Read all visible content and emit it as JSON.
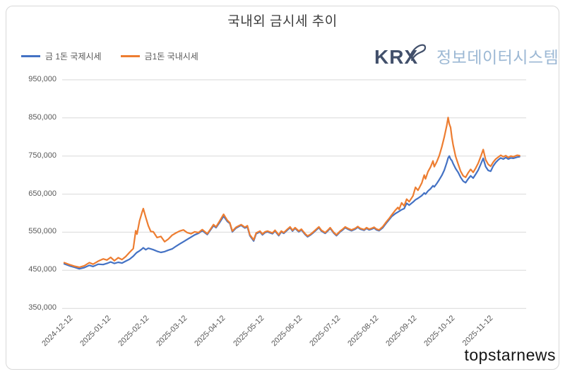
{
  "watermark": "topstarnews",
  "logo": {
    "text": "KRX",
    "subtitle": "정보데이터시스템",
    "text_color": "#42506B",
    "subtitle_color": "#9CB8D4"
  },
  "colors": {
    "grid": "#d9d9d9",
    "axis_text": "#595959",
    "title_text": "#3d3d3d",
    "international_line": "#4472C4",
    "domestic_line": "#ED7D31"
  },
  "chart_data": {
    "type": "line",
    "title": "국내외 금시세 추이",
    "xlabel": "",
    "ylabel": "",
    "unit": "KRW",
    "ylim": [
      350000,
      950000
    ],
    "y_tick_interval": 100000,
    "grid": true,
    "legend_position": "top-left",
    "x_tick_labels": [
      "2024-12-12",
      "2025-01-12",
      "2025-02-12",
      "2025-03-12",
      "2025-04-12",
      "2025-05-12",
      "2025-06-12",
      "2025-07-12",
      "2025-08-12",
      "2025-09-12",
      "2025-10-12",
      "2025-11-12"
    ],
    "dates": [
      "2024-12-12",
      "2024-12-16",
      "2024-12-20",
      "2024-12-24",
      "2024-12-28",
      "2025-01-01",
      "2025-01-04",
      "2025-01-08",
      "2025-01-12",
      "2025-01-15",
      "2025-01-18",
      "2025-01-21",
      "2025-01-24",
      "2025-01-27",
      "2025-01-30",
      "2025-02-02",
      "2025-02-05",
      "2025-02-07",
      "2025-02-08",
      "2025-02-10",
      "2025-02-12",
      "2025-02-13",
      "2025-02-15",
      "2025-02-17",
      "2025-02-19",
      "2025-02-21",
      "2025-02-24",
      "2025-02-27",
      "2025-03-02",
      "2025-03-05",
      "2025-03-08",
      "2025-03-11",
      "2025-03-14",
      "2025-03-17",
      "2025-03-20",
      "2025-03-23",
      "2025-03-26",
      "2025-03-29",
      "2025-04-01",
      "2025-04-05",
      "2025-04-08",
      "2025-04-10",
      "2025-04-12",
      "2025-04-15",
      "2025-04-18",
      "2025-04-21",
      "2025-04-23",
      "2025-04-25",
      "2025-04-28",
      "2025-05-02",
      "2025-05-05",
      "2025-05-07",
      "2025-05-09",
      "2025-05-12",
      "2025-05-14",
      "2025-05-17",
      "2025-05-19",
      "2025-05-21",
      "2025-05-23",
      "2025-05-27",
      "2025-05-29",
      "2025-06-01",
      "2025-06-03",
      "2025-06-05",
      "2025-06-08",
      "2025-06-10",
      "2025-06-12",
      "2025-06-14",
      "2025-06-17",
      "2025-06-19",
      "2025-06-22",
      "2025-06-24",
      "2025-06-26",
      "2025-06-28",
      "2025-07-01",
      "2025-07-03",
      "2025-07-05",
      "2025-07-08",
      "2025-07-10",
      "2025-07-12",
      "2025-07-15",
      "2025-07-17",
      "2025-07-20",
      "2025-07-22",
      "2025-07-24",
      "2025-07-26",
      "2025-07-29",
      "2025-08-01",
      "2025-08-03",
      "2025-08-05",
      "2025-08-08",
      "2025-08-10",
      "2025-08-12",
      "2025-08-14",
      "2025-08-16",
      "2025-08-18",
      "2025-08-20",
      "2025-08-23",
      "2025-08-26",
      "2025-08-28",
      "2025-08-30",
      "2025-09-02",
      "2025-09-04",
      "2025-09-05",
      "2025-09-07",
      "2025-09-09",
      "2025-09-11",
      "2025-09-13",
      "2025-09-16",
      "2025-09-18",
      "2025-09-20",
      "2025-09-23",
      "2025-09-25",
      "2025-09-26",
      "2025-09-28",
      "2025-09-30",
      "2025-10-02",
      "2025-10-03",
      "2025-10-05",
      "2025-10-07",
      "2025-10-09",
      "2025-10-11",
      "2025-10-13",
      "2025-10-14",
      "2025-10-15",
      "2025-10-16",
      "2025-10-17",
      "2025-10-18",
      "2025-10-20",
      "2025-10-22",
      "2025-10-24",
      "2025-10-26",
      "2025-10-28",
      "2025-10-30",
      "2025-11-01",
      "2025-11-03",
      "2025-11-05",
      "2025-11-07",
      "2025-11-09",
      "2025-11-11",
      "2025-11-13",
      "2025-11-15",
      "2025-11-17",
      "2025-11-19",
      "2025-11-21",
      "2025-11-23",
      "2025-11-25",
      "2025-11-27",
      "2025-11-29",
      "2025-12-01",
      "2025-12-03",
      "2025-12-05",
      "2025-12-08",
      "2025-12-10"
    ],
    "series": [
      {
        "name": "금 1돈 국제시세",
        "color": "#4472C4",
        "values": [
          467000,
          462000,
          458000,
          454000,
          457000,
          463000,
          460000,
          466000,
          465000,
          468000,
          472000,
          468000,
          471000,
          469000,
          474000,
          479000,
          487000,
          494000,
          497000,
          501000,
          506000,
          509000,
          504000,
          508000,
          506000,
          504000,
          500000,
          497000,
          499000,
          503000,
          506000,
          513000,
          519000,
          525000,
          531000,
          537000,
          543000,
          547000,
          554000,
          544000,
          558000,
          567000,
          562000,
          576000,
          592000,
          578000,
          573000,
          551000,
          561000,
          568000,
          561000,
          564000,
          541000,
          527000,
          546000,
          551000,
          543000,
          549000,
          551000,
          546000,
          553000,
          541000,
          551000,
          547000,
          556000,
          562000,
          553000,
          560000,
          551000,
          556000,
          544000,
          538000,
          542000,
          547000,
          556000,
          562000,
          553000,
          547000,
          553000,
          560000,
          547000,
          541000,
          551000,
          556000,
          562000,
          558000,
          554000,
          558000,
          563000,
          558000,
          555000,
          560000,
          556000,
          558000,
          561000,
          556000,
          554000,
          562000,
          575000,
          583000,
          591000,
          599000,
          603000,
          605000,
          609000,
          612000,
          626000,
          621000,
          629000,
          635000,
          639000,
          646000,
          653000,
          650000,
          658000,
          664000,
          672000,
          669000,
          678000,
          688000,
          699000,
          713000,
          733000,
          745000,
          750000,
          742000,
          738000,
          730000,
          717000,
          707000,
          694000,
          684000,
          680000,
          690000,
          698000,
          692000,
          702000,
          713000,
          728000,
          744000,
          722000,
          712000,
          710000,
          724000,
          733000,
          740000,
          745000,
          742000,
          746000,
          742000,
          745000,
          744000,
          747000,
          748000
        ]
      },
      {
        "name": "금1돈 국내시세",
        "color": "#ED7D31",
        "values": [
          470000,
          465000,
          461000,
          458000,
          462000,
          470000,
          466000,
          474000,
          480000,
          477000,
          484000,
          475000,
          483000,
          478000,
          486000,
          497000,
          507000,
          554000,
          545000,
          580000,
          602000,
          612000,
          589000,
          567000,
          552000,
          551000,
          536000,
          539000,
          525000,
          532000,
          542000,
          548000,
          553000,
          556000,
          549000,
          546000,
          551000,
          549000,
          557000,
          546000,
          560000,
          570000,
          564000,
          580000,
          597000,
          581000,
          575000,
          553000,
          563000,
          570000,
          563000,
          567000,
          543000,
          530000,
          548000,
          553000,
          545000,
          551000,
          553000,
          548000,
          555000,
          543000,
          553000,
          549000,
          558000,
          564000,
          555000,
          562000,
          553000,
          558000,
          546000,
          540000,
          544000,
          549000,
          558000,
          564000,
          555000,
          549000,
          555000,
          562000,
          549000,
          543000,
          553000,
          558000,
          564000,
          560000,
          556000,
          560000,
          565000,
          560000,
          557000,
          562000,
          558000,
          560000,
          563000,
          558000,
          556000,
          565000,
          578000,
          586000,
          595000,
          608000,
          615000,
          610000,
          627000,
          619000,
          637000,
          630000,
          645000,
          668000,
          660000,
          679000,
          700000,
          690000,
          709000,
          721000,
          737000,
          722000,
          735000,
          751000,
          774000,
          800000,
          831000,
          851000,
          834000,
          825000,
          799000,
          779000,
          749000,
          729000,
          710000,
          698000,
          694000,
          706000,
          715000,
          707000,
          718000,
          731000,
          748000,
          767000,
          740000,
          728000,
          723000,
          734000,
          742000,
          747000,
          752000,
          748000,
          751000,
          746000,
          750000,
          748000,
          752000,
          751000
        ]
      }
    ]
  }
}
